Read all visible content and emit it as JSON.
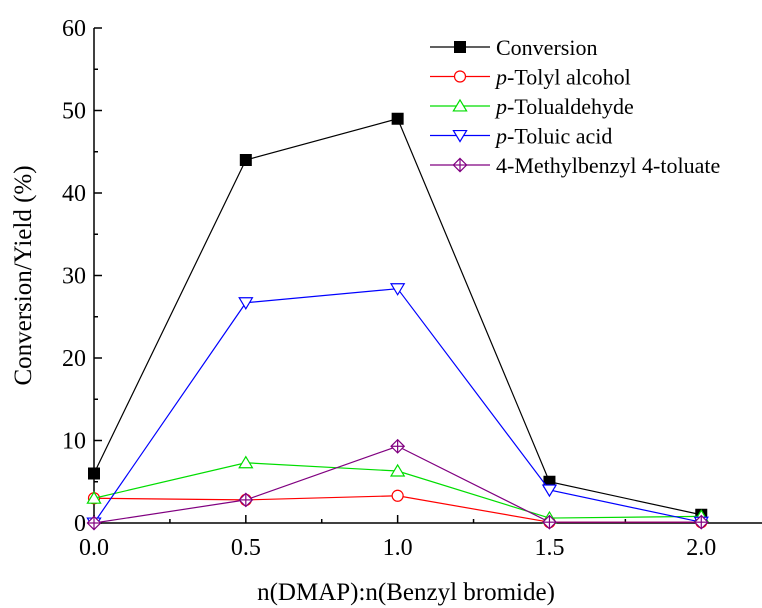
{
  "chart_data": {
    "type": "line",
    "title": "",
    "xlabel": "n(DMAP):n(Benzyl bromide)",
    "ylabel": "Conversion/Yield (%)",
    "xlim": [
      0.0,
      2.2
    ],
    "ylim": [
      0,
      60
    ],
    "x_ticks": [
      "0.0",
      "0.5",
      "1.0",
      "1.5",
      "2.0"
    ],
    "y_ticks": [
      "0",
      "10",
      "20",
      "30",
      "40",
      "50",
      "60"
    ],
    "legend_position": "top-right",
    "grid": false,
    "x": [
      0.0,
      0.5,
      1.0,
      1.5,
      2.0
    ],
    "series": [
      {
        "name": "Conversion",
        "name_prefix": "",
        "name_rest": "Conversion",
        "color": "#000000",
        "marker": "filled-square",
        "values": [
          6.0,
          44.0,
          49.0,
          5.0,
          1.0
        ]
      },
      {
        "name": "p-Tolyl alcohol",
        "name_prefix": "p",
        "name_rest": "-Tolyl alcohol",
        "color": "#ff0000",
        "marker": "circle",
        "values": [
          3.0,
          2.8,
          3.3,
          0.1,
          0.1
        ]
      },
      {
        "name": "p-Tolualdehyde",
        "name_prefix": "p",
        "name_rest": "-Tolualdehyde",
        "color": "#00dd00",
        "marker": "triangle-up",
        "values": [
          3.0,
          7.3,
          6.3,
          0.6,
          0.8
        ]
      },
      {
        "name": "p-Toluic acid",
        "name_prefix": "p",
        "name_rest": "-Toluic acid",
        "color": "#0000ff",
        "marker": "triangle-down",
        "values": [
          0.0,
          26.7,
          28.4,
          4.0,
          0.1
        ]
      },
      {
        "name": "4-Methylbenzyl 4-toluate",
        "name_prefix": "",
        "name_rest": "4-Methylbenzyl 4-toluate",
        "color": "#800080",
        "marker": "crossed-diamond",
        "values": [
          0.0,
          2.8,
          9.3,
          0.1,
          0.1
        ]
      }
    ]
  }
}
